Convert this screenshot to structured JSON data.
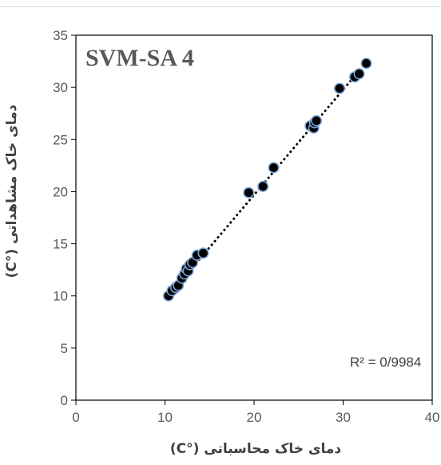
{
  "chart_data": {
    "type": "scatter",
    "title": "SVM-SA 4",
    "xlabel": "دمای خاک محاسباتی (°C)",
    "ylabel": "دمای خاک مشاهداتی (°C)",
    "xlim": [
      0,
      40
    ],
    "ylim": [
      0,
      35
    ],
    "x_ticks": [
      0,
      10,
      20,
      30,
      40
    ],
    "y_ticks": [
      0,
      5,
      10,
      15,
      20,
      25,
      30,
      35
    ],
    "annotation": "R² = 0/9984",
    "grid": false,
    "trendline": {
      "style": "dotted",
      "from": [
        10.3,
        9.9
      ],
      "to": [
        32.6,
        32.4
      ]
    },
    "marker_fill": "#000000",
    "marker_edge": "#7aa6d8",
    "points": [
      {
        "x": 10.4,
        "y": 10.0
      },
      {
        "x": 10.8,
        "y": 10.5
      },
      {
        "x": 11.2,
        "y": 10.8
      },
      {
        "x": 11.5,
        "y": 11.0
      },
      {
        "x": 11.9,
        "y": 11.7
      },
      {
        "x": 12.2,
        "y": 12.1
      },
      {
        "x": 12.4,
        "y": 12.6
      },
      {
        "x": 12.6,
        "y": 12.4
      },
      {
        "x": 12.8,
        "y": 13.0
      },
      {
        "x": 13.1,
        "y": 13.2
      },
      {
        "x": 13.6,
        "y": 13.9
      },
      {
        "x": 14.3,
        "y": 14.1
      },
      {
        "x": 19.4,
        "y": 19.9
      },
      {
        "x": 21.0,
        "y": 20.5
      },
      {
        "x": 22.2,
        "y": 22.3
      },
      {
        "x": 26.3,
        "y": 26.3
      },
      {
        "x": 26.7,
        "y": 26.1
      },
      {
        "x": 26.8,
        "y": 26.6
      },
      {
        "x": 27.0,
        "y": 26.8
      },
      {
        "x": 29.6,
        "y": 29.9
      },
      {
        "x": 31.3,
        "y": 31.0
      },
      {
        "x": 31.8,
        "y": 31.3
      },
      {
        "x": 32.6,
        "y": 32.3
      }
    ]
  }
}
